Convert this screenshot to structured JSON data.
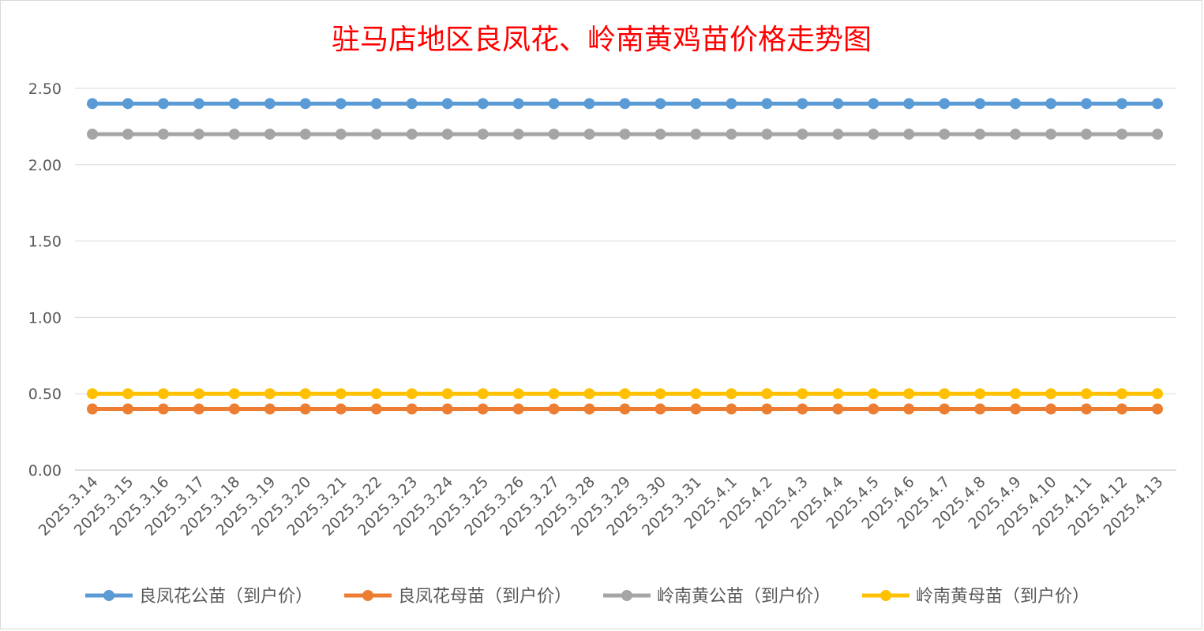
{
  "chart_data": {
    "type": "line",
    "title": "驻马店地区良凤花、岭南黄鸡苗价格走势图",
    "title_color": "#ff0000",
    "xlabel": "",
    "ylabel": "",
    "ylim": [
      0,
      2.5
    ],
    "y_ticks": [
      "0.00",
      "0.50",
      "1.00",
      "1.50",
      "2.00",
      "2.50"
    ],
    "grid": true,
    "legend_position": "bottom",
    "categories": [
      "2025.3.14",
      "2025.3.15",
      "2025.3.16",
      "2025.3.17",
      "2025.3.18",
      "2025.3.19",
      "2025.3.20",
      "2025.3.21",
      "2025.3.22",
      "2025.3.23",
      "2025.3.24",
      "2025.3.25",
      "2025.3.26",
      "2025.3.27",
      "2025.3.28",
      "2025.3.29",
      "2025.3.30",
      "2025.3.31",
      "2025.4.1",
      "2025.4.2",
      "2025.4.3",
      "2025.4.4",
      "2025.4.5",
      "2025.4.6",
      "2025.4.7",
      "2025.4.8",
      "2025.4.9",
      "2025.4.10",
      "2025.4.11",
      "2025.4.12",
      "2025.4.13"
    ],
    "series": [
      {
        "name": "良凤花公苗（到户价）",
        "color": "#5b9bd5",
        "values": [
          2.4,
          2.4,
          2.4,
          2.4,
          2.4,
          2.4,
          2.4,
          2.4,
          2.4,
          2.4,
          2.4,
          2.4,
          2.4,
          2.4,
          2.4,
          2.4,
          2.4,
          2.4,
          2.4,
          2.4,
          2.4,
          2.4,
          2.4,
          2.4,
          2.4,
          2.4,
          2.4,
          2.4,
          2.4,
          2.4,
          2.4
        ]
      },
      {
        "name": "良凤花母苗（到户价）",
        "color": "#ed7d31",
        "values": [
          0.4,
          0.4,
          0.4,
          0.4,
          0.4,
          0.4,
          0.4,
          0.4,
          0.4,
          0.4,
          0.4,
          0.4,
          0.4,
          0.4,
          0.4,
          0.4,
          0.4,
          0.4,
          0.4,
          0.4,
          0.4,
          0.4,
          0.4,
          0.4,
          0.4,
          0.4,
          0.4,
          0.4,
          0.4,
          0.4,
          0.4
        ]
      },
      {
        "name": "岭南黄公苗（到户价）",
        "color": "#a5a5a5",
        "values": [
          2.2,
          2.2,
          2.2,
          2.2,
          2.2,
          2.2,
          2.2,
          2.2,
          2.2,
          2.2,
          2.2,
          2.2,
          2.2,
          2.2,
          2.2,
          2.2,
          2.2,
          2.2,
          2.2,
          2.2,
          2.2,
          2.2,
          2.2,
          2.2,
          2.2,
          2.2,
          2.2,
          2.2,
          2.2,
          2.2,
          2.2
        ]
      },
      {
        "name": "岭南黄母苗（到户价）",
        "color": "#ffc000",
        "values": [
          0.5,
          0.5,
          0.5,
          0.5,
          0.5,
          0.5,
          0.5,
          0.5,
          0.5,
          0.5,
          0.5,
          0.5,
          0.5,
          0.5,
          0.5,
          0.5,
          0.5,
          0.5,
          0.5,
          0.5,
          0.5,
          0.5,
          0.5,
          0.5,
          0.5,
          0.5,
          0.5,
          0.5,
          0.5,
          0.5,
          0.5
        ]
      }
    ]
  }
}
